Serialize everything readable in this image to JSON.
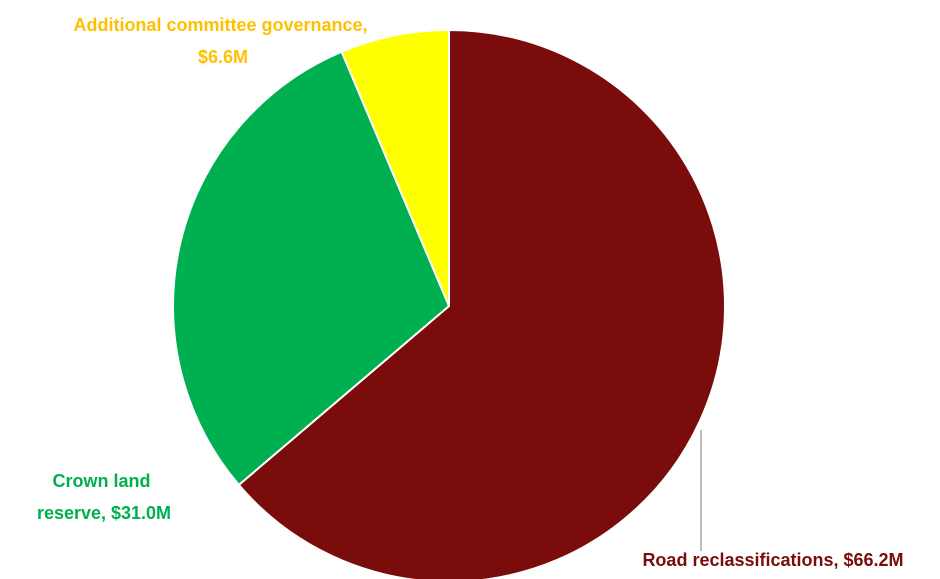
{
  "chart_data": {
    "type": "pie",
    "title": "",
    "start_angle_deg": 0,
    "direction": "clockwise",
    "slices": [
      {
        "label": "Road reclassifications",
        "value_text": "$66.2M",
        "value": 66.2,
        "color": "#7b0c0c",
        "label_color": "#7b0c0c",
        "label_lines": [
          "Road reclassifications, $66.2M"
        ]
      },
      {
        "label": "Crown land reserve",
        "value_text": "$31.0M",
        "value": 31.0,
        "color": "#00b050",
        "label_color": "#00b050",
        "label_lines": [
          "Crown land",
          "reserve, $31.0M"
        ]
      },
      {
        "label": "Additional committee governance",
        "value_text": "$6.6M",
        "value": 6.6,
        "color": "#ffff00",
        "label_color": "#ffc000",
        "label_lines": [
          "Additional committee governance,",
          "$6.6M"
        ]
      }
    ],
    "leader_line_color": "#a6a6a6"
  }
}
